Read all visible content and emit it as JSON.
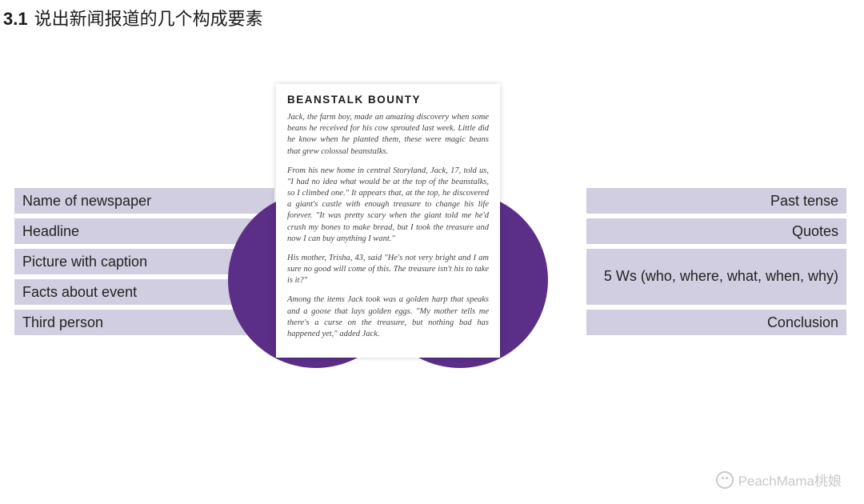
{
  "heading": {
    "number": "3.1",
    "text": "说出新闻报道的几个构成要素"
  },
  "left_bars": [
    "Name of newspaper",
    "Headline",
    "Picture with caption",
    "Facts about event",
    "Third person"
  ],
  "right_bars": [
    "Past tense",
    "Quotes",
    "5 Ws (who, where, what, when, why)",
    "Conclusion"
  ],
  "article": {
    "title": "BEANSTALK  BOUNTY",
    "paragraphs": [
      "Jack, the farm boy, made an amazing discovery when some beans he received for his cow sprouted last week. Little did he know when he planted them, these were magic beans that grew colossal beanstalks.",
      "From his new home in central Storyland, Jack, 17, told us, \"I had no idea what would be at the top of the beanstalks, so I climbed one.\" It appears that, at the top, he discovered a giant's castle with enough treasure to change his life forever. \"It was pretty scary when the giant told me he'd crush my bones to make bread, but I took the treasure and now I can buy anything I want.\"",
      "His mother, Trisha, 43, said \"He's not very bright and I am sure no good will come of this. The treasure isn't his to take is it?\"",
      "Among the items Jack took was a golden harp that speaks and a goose that lays golden eggs. \"My mother tells me there's a curse on the treasure, but nothing bad has happened yet,\" added Jack."
    ]
  },
  "watermark": "PeachMama桃娘",
  "colors": {
    "bar_bg": "#d2cee2",
    "circle": "#5b2e87",
    "text": "#222222"
  }
}
